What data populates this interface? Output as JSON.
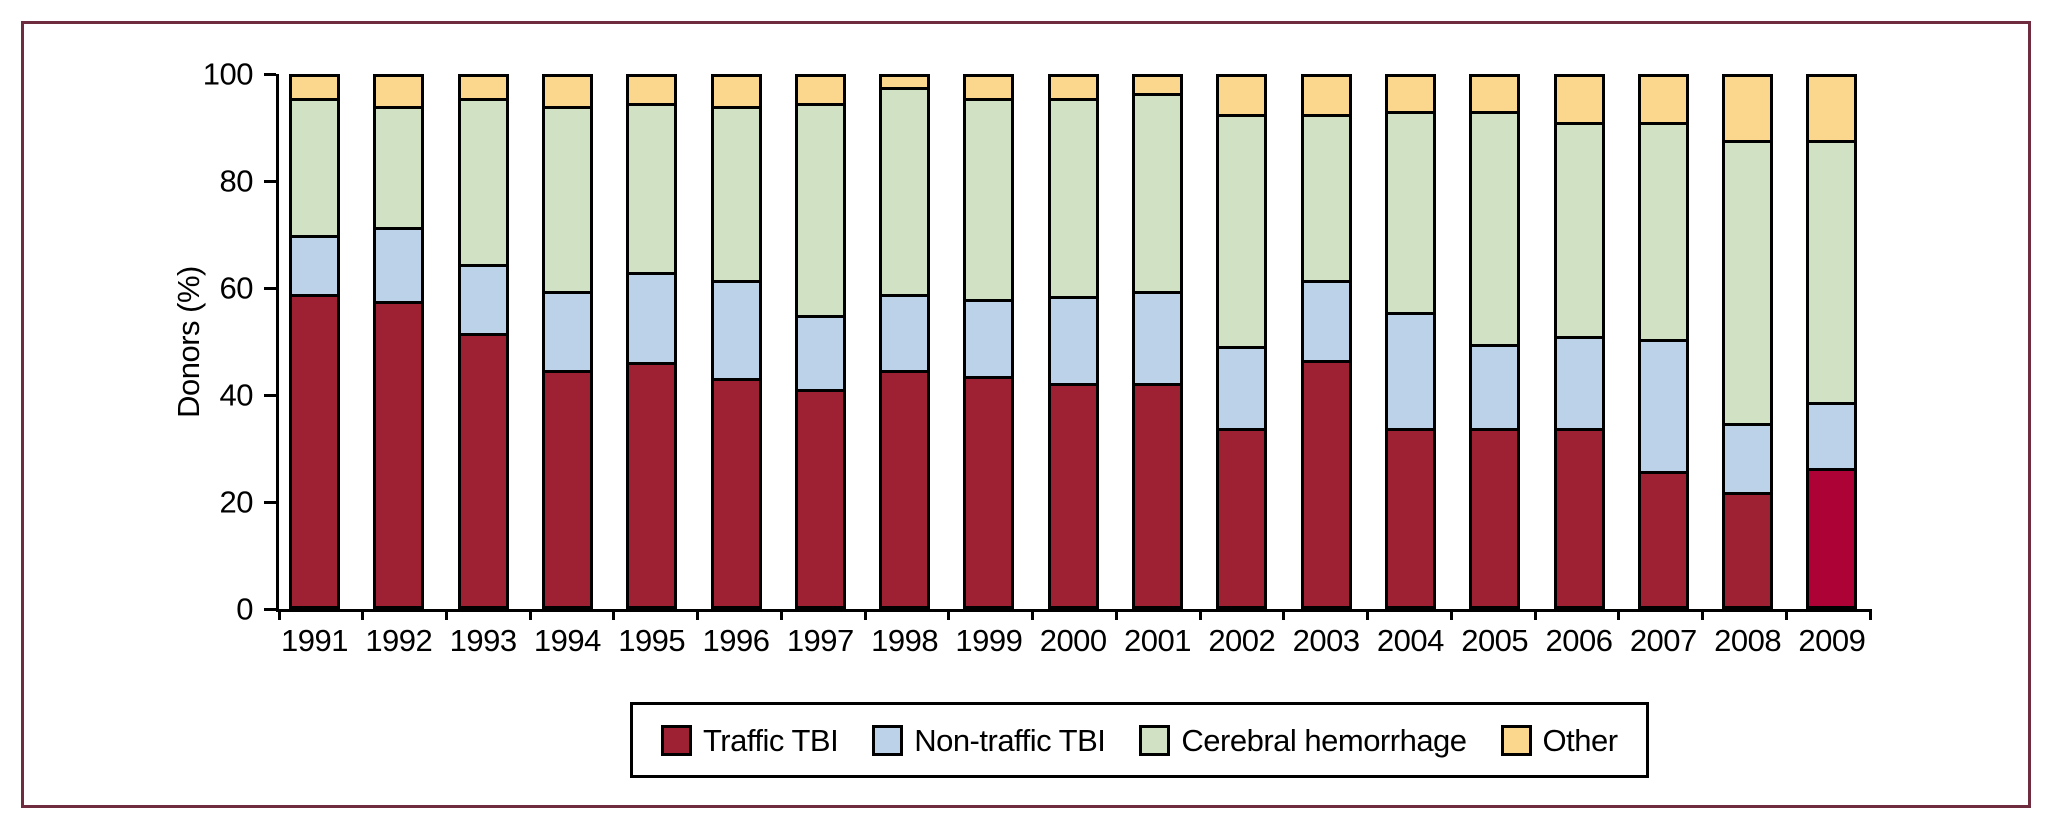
{
  "figure": {
    "background_color": "#ffffff",
    "frame_color": "#6E2C3E",
    "axis_color": "#000000"
  },
  "chart_data": {
    "type": "bar",
    "stacked": true,
    "title": "",
    "xlabel": "",
    "ylabel": "Donors (%)",
    "ylim": [
      0,
      100
    ],
    "yticks": [
      0,
      20,
      40,
      60,
      80,
      100
    ],
    "grid": false,
    "legend_position": "bottom-center",
    "categories": [
      "1991",
      "1992",
      "1993",
      "1994",
      "1995",
      "1996",
      "1997",
      "1998",
      "1999",
      "2000",
      "2001",
      "2002",
      "2003",
      "2004",
      "2005",
      "2006",
      "2007",
      "2008",
      "2009"
    ],
    "series": [
      {
        "name": "Traffic TBI",
        "color": "#9E2133",
        "values": [
          58.5,
          57,
          51,
          44,
          45.5,
          42.5,
          40.5,
          44,
          43,
          41.5,
          41.5,
          33,
          46,
          33,
          33,
          33,
          25,
          21,
          25.5
        ]
      },
      {
        "name": "Non-traffic TBI",
        "color": "#BCD2E8",
        "values": [
          11,
          14,
          13,
          15,
          17,
          18.5,
          14,
          14.5,
          14.5,
          16.5,
          17.5,
          15.5,
          15,
          22,
          16,
          17.5,
          25,
          13,
          12.5
        ]
      },
      {
        "name": "Cerebral hemorrhage",
        "color": "#D0E1C4",
        "values": [
          26,
          23,
          31.5,
          35,
          32,
          33,
          40,
          39,
          38,
          37.5,
          37.5,
          44,
          31.5,
          38,
          44,
          40.5,
          41,
          53.5,
          49.5
        ]
      },
      {
        "name": "Other",
        "color": "#FBD78D",
        "values": [
          4.5,
          6,
          4.5,
          6,
          5.5,
          6,
          5.5,
          2.5,
          4.5,
          4.5,
          3.5,
          7.5,
          7.5,
          7,
          7,
          9,
          9,
          12.5,
          12.5
        ]
      }
    ],
    "highlight": {
      "category": "2009",
      "series": "Traffic TBI",
      "color": "#AC0235"
    }
  }
}
